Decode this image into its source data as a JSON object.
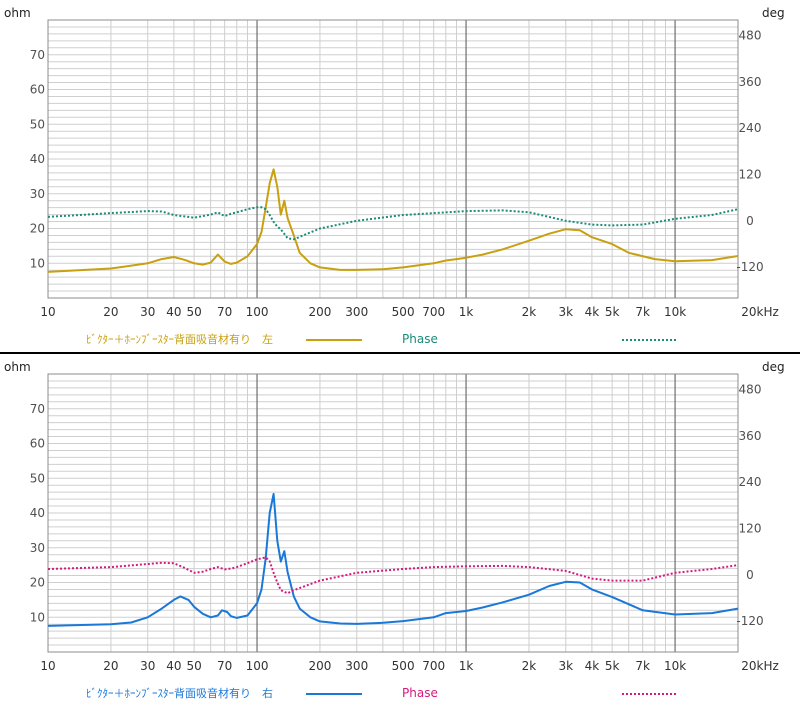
{
  "colors": {
    "grid_minor": "#cfcfcf",
    "grid_major": "#6e6e6e",
    "frame": "#8c8c8c",
    "label": "#505050"
  },
  "chart_data": [
    {
      "type": "line",
      "x_scale": "log",
      "x_unit": "Hz",
      "xlim": [
        10,
        20000
      ],
      "x_tick_labels": [
        "10",
        "20",
        "30",
        "40",
        "50",
        "70",
        "100",
        "200",
        "300",
        "500",
        "700",
        "1k",
        "2k",
        "3k",
        "4k",
        "5k",
        "7k",
        "10k",
        "20kHz"
      ],
      "x_tick_values": [
        10,
        20,
        30,
        40,
        50,
        70,
        100,
        200,
        300,
        500,
        700,
        1000,
        2000,
        3000,
        4000,
        5000,
        7000,
        10000,
        20000
      ],
      "left_axis": {
        "label": "ohm",
        "ticks": [
          10,
          20,
          30,
          40,
          50,
          60,
          70
        ],
        "range": [
          0,
          80
        ]
      },
      "right_axis": {
        "label": "deg",
        "ticks": [
          -120,
          0,
          120,
          240,
          360,
          480
        ],
        "range": [
          -200,
          520
        ]
      },
      "legend": [
        {
          "name": "ﾋﾞｸﾀｰ＋ﾎｰﾝﾌﾞｰｽﾀｰ背面吸音材有り　左",
          "color": "#c8a010",
          "style": "solid"
        },
        {
          "name": "Phase",
          "color": "#1a8c78",
          "style": "dotted"
        }
      ],
      "series": [
        {
          "name": "ﾋﾞｸﾀｰ＋ﾎｰﾝﾌﾞｰｽﾀｰ背面吸音材有り　左",
          "axis": "left",
          "x": [
            10,
            20,
            30,
            35,
            40,
            45,
            50,
            55,
            60,
            65,
            70,
            75,
            80,
            90,
            100,
            105,
            110,
            115,
            120,
            125,
            130,
            135,
            140,
            150,
            160,
            180,
            200,
            250,
            300,
            400,
            500,
            700,
            800,
            900,
            1000,
            1200,
            1500,
            2000,
            2500,
            3000,
            3500,
            4000,
            5000,
            6000,
            8000,
            10000,
            15000,
            20000
          ],
          "values": [
            7.5,
            8.5,
            10,
            11.2,
            11.8,
            11,
            10,
            9.6,
            10.2,
            12.5,
            10.5,
            9.8,
            10.2,
            12,
            15.5,
            19,
            26,
            33,
            37,
            32,
            24,
            28,
            23,
            18,
            13,
            10,
            8.8,
            8.1,
            8.1,
            8.3,
            8.8,
            10,
            10.8,
            11.2,
            11.6,
            12.5,
            14,
            16.5,
            18.5,
            19.8,
            19.5,
            17.5,
            15.5,
            13,
            11.2,
            10.6,
            10.9,
            12.1
          ]
        },
        {
          "name": "Phase",
          "axis": "right",
          "x": [
            10,
            20,
            30,
            35,
            40,
            50,
            55,
            60,
            65,
            70,
            75,
            80,
            90,
            100,
            105,
            110,
            115,
            120,
            125,
            130,
            140,
            150,
            200,
            300,
            500,
            1000,
            1500,
            2000,
            3000,
            4000,
            5000,
            7000,
            10000,
            15000,
            20000
          ],
          "values": [
            10,
            20,
            25,
            24,
            15,
            8,
            12,
            16,
            22,
            12,
            18,
            22,
            30,
            35,
            35,
            30,
            15,
            -3,
            -15,
            -22,
            -45,
            -48,
            -20,
            0,
            15,
            25,
            27,
            22,
            0,
            -10,
            -12,
            -10,
            5,
            15,
            30
          ]
        }
      ]
    },
    {
      "type": "line",
      "x_scale": "log",
      "x_unit": "Hz",
      "xlim": [
        10,
        20000
      ],
      "x_tick_labels": [
        "10",
        "20",
        "30",
        "40",
        "50",
        "70",
        "100",
        "200",
        "300",
        "500",
        "700",
        "1k",
        "2k",
        "3k",
        "4k",
        "5k",
        "7k",
        "10k",
        "20kHz"
      ],
      "x_tick_values": [
        10,
        20,
        30,
        40,
        50,
        70,
        100,
        200,
        300,
        500,
        700,
        1000,
        2000,
        3000,
        4000,
        5000,
        7000,
        10000,
        20000
      ],
      "left_axis": {
        "label": "ohm",
        "ticks": [
          10,
          20,
          30,
          40,
          50,
          60,
          70
        ],
        "range": [
          0,
          80
        ]
      },
      "right_axis": {
        "label": "deg",
        "ticks": [
          -120,
          0,
          120,
          240,
          360,
          480
        ],
        "range": [
          -200,
          520
        ]
      },
      "legend": [
        {
          "name": "ﾋﾞｸﾀｰ＋ﾎｰﾝﾌﾞｰｽﾀｰ背面吸音材有り　右",
          "color": "#1a78d8",
          "style": "solid"
        },
        {
          "name": "Phase",
          "color": "#d81880",
          "style": "dotted"
        }
      ],
      "series": [
        {
          "name": "ﾋﾞｸﾀｰ＋ﾎｰﾝﾌﾞｰｽﾀｰ背面吸音材有り　右",
          "axis": "left",
          "x": [
            10,
            20,
            25,
            30,
            35,
            40,
            43,
            47,
            50,
            55,
            60,
            65,
            68,
            72,
            75,
            80,
            90,
            100,
            105,
            110,
            115,
            120,
            125,
            130,
            135,
            140,
            150,
            160,
            180,
            200,
            250,
            300,
            400,
            500,
            700,
            800,
            1000,
            1200,
            1500,
            2000,
            2500,
            3000,
            3500,
            4000,
            5000,
            7000,
            10000,
            15000,
            20000
          ],
          "values": [
            7.5,
            8,
            8.5,
            10,
            12.5,
            15,
            16,
            15,
            13,
            11,
            10,
            10.5,
            12,
            11.5,
            10.3,
            9.8,
            10.5,
            14,
            18,
            27,
            40,
            45.5,
            32,
            26,
            29,
            23,
            16,
            12.5,
            10,
            8.8,
            8.2,
            8.1,
            8.4,
            8.9,
            10,
            11.2,
            11.8,
            12.8,
            14.3,
            16.5,
            19,
            20.2,
            20,
            18,
            15.8,
            12,
            10.8,
            11.2,
            12.5
          ]
        },
        {
          "name": "Phase",
          "axis": "right",
          "x": [
            10,
            20,
            30,
            35,
            40,
            45,
            50,
            55,
            60,
            65,
            70,
            75,
            80,
            90,
            100,
            110,
            115,
            120,
            125,
            130,
            140,
            150,
            200,
            300,
            500,
            700,
            1000,
            1500,
            2000,
            3000,
            4000,
            5000,
            7000,
            10000,
            15000,
            20000
          ],
          "values": [
            15,
            20,
            28,
            31,
            30,
            18,
            5,
            8,
            15,
            20,
            14,
            16,
            20,
            30,
            40,
            45,
            35,
            5,
            -20,
            -40,
            -48,
            -40,
            -15,
            5,
            15,
            20,
            22,
            23,
            20,
            10,
            -10,
            -15,
            -15,
            5,
            15,
            25
          ]
        }
      ]
    }
  ]
}
